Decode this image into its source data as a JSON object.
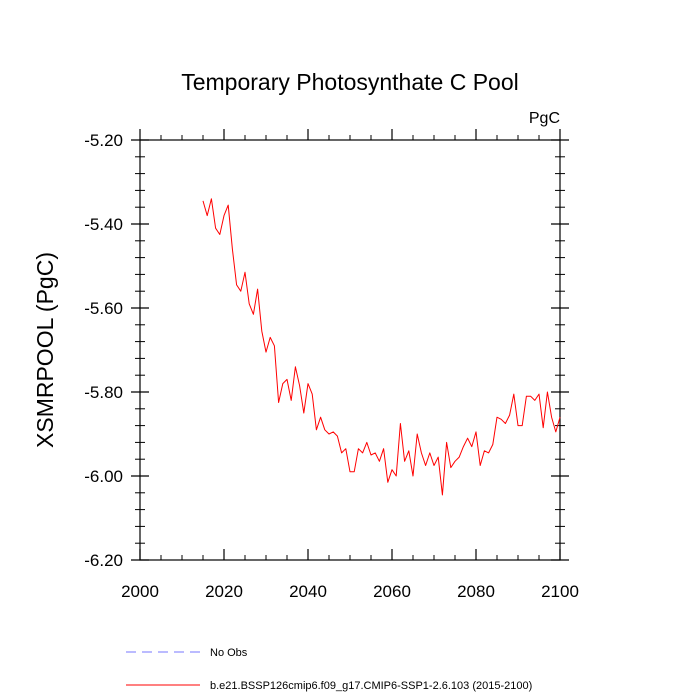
{
  "chart_data": {
    "type": "line",
    "title": "Temporary Photosynthate C Pool",
    "units_label": "PgC",
    "ylabel": "XSMRPOOL  (PgC)",
    "xlabel": "",
    "xlim": [
      2000,
      2100
    ],
    "ylim": [
      -6.2,
      -5.2
    ],
    "x_ticks": [
      2000,
      2020,
      2040,
      2060,
      2080,
      2100
    ],
    "x_tick_labels": [
      "2000",
      "2020",
      "2040",
      "2060",
      "2080",
      "2100"
    ],
    "y_ticks": [
      -5.2,
      -5.4,
      -5.6,
      -5.8,
      -6.0,
      -6.2
    ],
    "y_tick_labels": [
      "-5.20",
      "-5.40",
      "-5.60",
      "-5.80",
      "-6.00",
      "-6.20"
    ],
    "series": [
      {
        "name": "b.e21.BSSP126cmip6.f09_g17.CMIP6-SSP1-2.6.103 (2015-2100)",
        "color": "#ff0000",
        "style": "solid",
        "x": [
          2015,
          2016,
          2017,
          2018,
          2019,
          2020,
          2021,
          2022,
          2023,
          2024,
          2025,
          2026,
          2027,
          2028,
          2029,
          2030,
          2031,
          2032,
          2033,
          2034,
          2035,
          2036,
          2037,
          2038,
          2039,
          2040,
          2041,
          2042,
          2043,
          2044,
          2045,
          2046,
          2047,
          2048,
          2049,
          2050,
          2051,
          2052,
          2053,
          2054,
          2055,
          2056,
          2057,
          2058,
          2059,
          2060,
          2061,
          2062,
          2063,
          2064,
          2065,
          2066,
          2067,
          2068,
          2069,
          2070,
          2071,
          2072,
          2073,
          2074,
          2075,
          2076,
          2077,
          2078,
          2079,
          2080,
          2081,
          2082,
          2083,
          2084,
          2085,
          2086,
          2087,
          2088,
          2089,
          2090,
          2091,
          2092,
          2093,
          2094,
          2095,
          2096,
          2097,
          2098,
          2099,
          2100
        ],
        "values": [
          -5.345,
          -5.38,
          -5.34,
          -5.41,
          -5.425,
          -5.38,
          -5.355,
          -5.46,
          -5.545,
          -5.56,
          -5.515,
          -5.59,
          -5.615,
          -5.555,
          -5.655,
          -5.705,
          -5.67,
          -5.69,
          -5.825,
          -5.78,
          -5.77,
          -5.82,
          -5.74,
          -5.785,
          -5.85,
          -5.78,
          -5.805,
          -5.89,
          -5.86,
          -5.89,
          -5.9,
          -5.895,
          -5.905,
          -5.945,
          -5.935,
          -5.99,
          -5.99,
          -5.935,
          -5.945,
          -5.92,
          -5.95,
          -5.945,
          -5.965,
          -5.935,
          -6.015,
          -5.985,
          -6.0,
          -5.875,
          -5.965,
          -5.94,
          -6.0,
          -5.9,
          -5.945,
          -5.975,
          -5.945,
          -5.975,
          -5.955,
          -6.045,
          -5.92,
          -5.98,
          -5.965,
          -5.955,
          -5.93,
          -5.91,
          -5.93,
          -5.895,
          -5.975,
          -5.94,
          -5.945,
          -5.925,
          -5.86,
          -5.865,
          -5.875,
          -5.855,
          -5.805,
          -5.88,
          -5.88,
          -5.81,
          -5.81,
          -5.82,
          -5.805,
          -5.885,
          -5.8,
          -5.86,
          -5.895,
          -5.86
        ]
      },
      {
        "name": "No Obs",
        "color": "#7777ff",
        "style": "dashed",
        "x": [],
        "values": []
      }
    ],
    "legend": [
      {
        "label": "No Obs",
        "color": "#7777ff",
        "style": "dashed"
      },
      {
        "label": "b.e21.BSSP126cmip6.f09_g17.CMIP6-SSP1-2.6.103 (2015-2100)",
        "color": "#ff0000",
        "style": "solid"
      }
    ],
    "grid": false,
    "legend_position": "bottom-left"
  }
}
